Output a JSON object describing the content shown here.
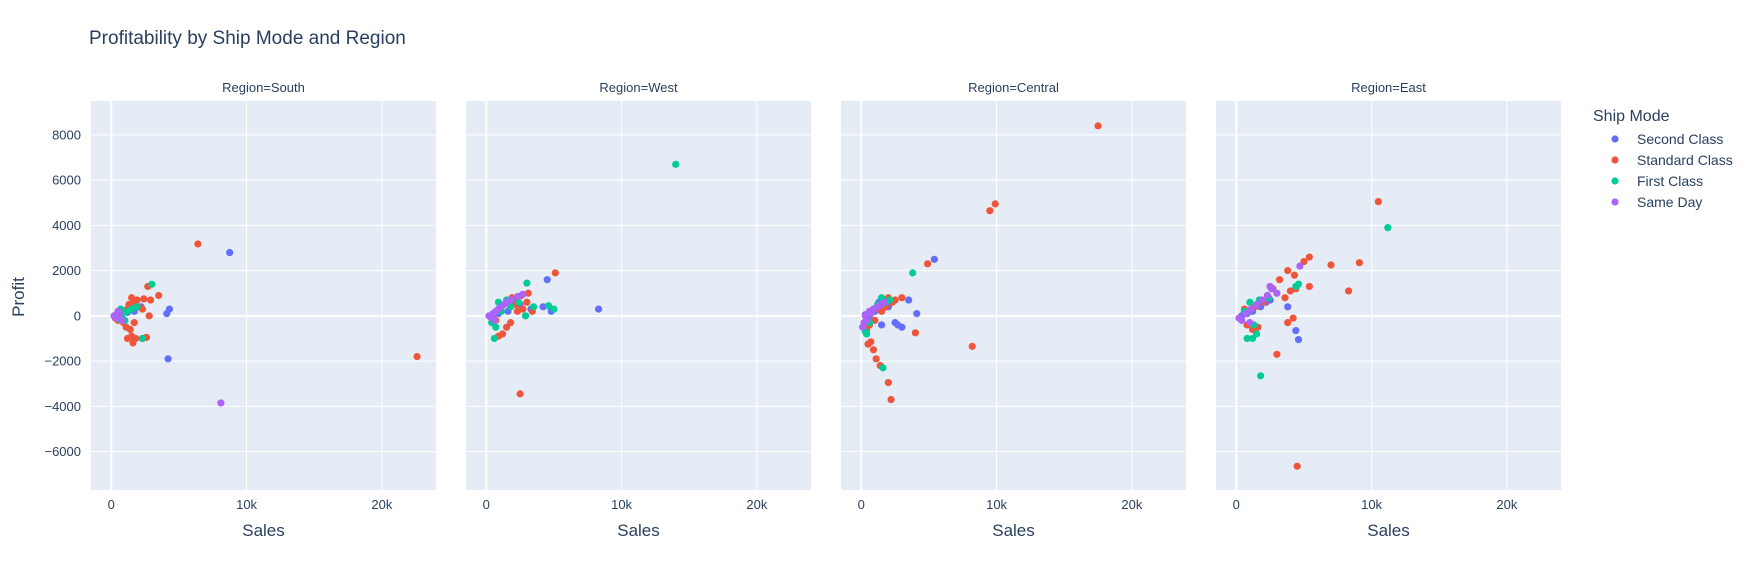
{
  "chart_data": {
    "type": "scatter",
    "title": "Profitability by Ship Mode and Region",
    "xlabel": "Sales",
    "ylabel": "Profit",
    "xlim": [
      -1500,
      24000
    ],
    "ylim": [
      -7700,
      9500
    ],
    "x_ticks": [
      0,
      10000,
      20000
    ],
    "x_tick_labels": [
      "0",
      "10k",
      "20k"
    ],
    "y_ticks": [
      -6000,
      -4000,
      -2000,
      0,
      2000,
      4000,
      6000,
      8000
    ],
    "y_tick_labels": [
      "−6000",
      "−4000",
      "−2000",
      "0",
      "2000",
      "4000",
      "6000",
      "8000"
    ],
    "grid": true,
    "legend": {
      "title": "Ship Mode",
      "position": "right",
      "entries": [
        "Second Class",
        "Standard Class",
        "First Class",
        "Same Day"
      ]
    },
    "colors": {
      "Second Class": "#636efa",
      "Standard Class": "#ef553b",
      "First Class": "#00cc96",
      "Same Day": "#ab63fa"
    },
    "panels": [
      {
        "title": "Region=South",
        "series": [
          {
            "name": "Second Class",
            "points": [
              [
                8750,
                2800
              ],
              [
                4300,
                300
              ],
              [
                4100,
                100
              ],
              [
                4200,
                -1900
              ],
              [
                1700,
                200
              ],
              [
                1200,
                150
              ],
              [
                2200,
                400
              ],
              [
                800,
                -100
              ],
              [
                300,
                20
              ],
              [
                600,
                80
              ]
            ]
          },
          {
            "name": "Standard Class",
            "points": [
              [
                22600,
                -1800
              ],
              [
                6400,
                3180
              ],
              [
                3500,
                900
              ],
              [
                2700,
                1300
              ],
              [
                2900,
                700
              ],
              [
                2400,
                750
              ],
              [
                2300,
                -1000
              ],
              [
                2600,
                -950
              ],
              [
                1800,
                -1000
              ],
              [
                1600,
                -1200
              ],
              [
                1500,
                -900
              ],
              [
                1200,
                -1000
              ],
              [
                1100,
                -500
              ],
              [
                1400,
                -600
              ],
              [
                1700,
                -300
              ],
              [
                1500,
                800
              ],
              [
                1900,
                700
              ],
              [
                1600,
                600
              ],
              [
                1300,
                500
              ],
              [
                2000,
                400
              ],
              [
                2800,
                0
              ],
              [
                2300,
                300
              ],
              [
                1000,
                200
              ],
              [
                700,
                100
              ],
              [
                500,
                -200
              ],
              [
                300,
                -100
              ],
              [
                900,
                -300
              ],
              [
                1200,
                300
              ]
            ]
          },
          {
            "name": "First Class",
            "points": [
              [
                3000,
                1400
              ],
              [
                2300,
                -1000
              ],
              [
                1900,
                400
              ],
              [
                1200,
                200
              ],
              [
                800,
                100
              ],
              [
                400,
                50
              ],
              [
                600,
                -150
              ],
              [
                1000,
                -200
              ],
              [
                1500,
                300
              ],
              [
                700,
                300
              ]
            ]
          },
          {
            "name": "Same Day",
            "points": [
              [
                8100,
                -3850
              ],
              [
                400,
                -100
              ],
              [
                200,
                0
              ],
              [
                600,
                100
              ],
              [
                300,
                -50
              ],
              [
                500,
                200
              ],
              [
                800,
                -200
              ]
            ]
          }
        ]
      },
      {
        "title": "Region=West",
        "series": [
          {
            "name": "Second Class",
            "points": [
              [
                8300,
                300
              ],
              [
                4500,
                1600
              ],
              [
                4800,
                200
              ],
              [
                4200,
                400
              ],
              [
                3300,
                300
              ],
              [
                2500,
                500
              ],
              [
                1600,
                200
              ],
              [
                900,
                100
              ],
              [
                500,
                50
              ],
              [
                2000,
                600
              ]
            ]
          },
          {
            "name": "Standard Class",
            "points": [
              [
                5100,
                1900
              ],
              [
                2500,
                -3450
              ],
              [
                3100,
                1000
              ],
              [
                3000,
                600
              ],
              [
                2600,
                900
              ],
              [
                2200,
                500
              ],
              [
                1800,
                -300
              ],
              [
                1500,
                -500
              ],
              [
                1200,
                -800
              ],
              [
                900,
                -900
              ],
              [
                1100,
                400
              ],
              [
                1500,
                600
              ],
              [
                2300,
                200
              ],
              [
                3400,
                200
              ],
              [
                700,
                -200
              ],
              [
                400,
                -100
              ],
              [
                1900,
                800
              ],
              [
                2700,
                300
              ]
            ]
          },
          {
            "name": "First Class",
            "points": [
              [
                14000,
                6700
              ],
              [
                3000,
                1450
              ],
              [
                4600,
                450
              ],
              [
                5000,
                300
              ],
              [
                3500,
                400
              ],
              [
                2900,
                0
              ],
              [
                2400,
                600
              ],
              [
                1800,
                400
              ],
              [
                1100,
                200
              ],
              [
                700,
                -500
              ],
              [
                600,
                -1000
              ],
              [
                400,
                -300
              ],
              [
                1500,
                700
              ],
              [
                900,
                600
              ]
            ]
          },
          {
            "name": "Same Day",
            "points": [
              [
                2700,
                950
              ],
              [
                2300,
                850
              ],
              [
                1800,
                700
              ],
              [
                1300,
                500
              ],
              [
                900,
                300
              ],
              [
                500,
                100
              ],
              [
                300,
                -50
              ],
              [
                700,
                200
              ],
              [
                1100,
                400
              ],
              [
                1500,
                600
              ],
              [
                600,
                -200
              ],
              [
                200,
                0
              ]
            ]
          }
        ]
      },
      {
        "title": "Region=Central",
        "series": [
          {
            "name": "Second Class",
            "points": [
              [
                5400,
                2500
              ],
              [
                4100,
                100
              ],
              [
                3500,
                700
              ],
              [
                3000,
                -500
              ],
              [
                2500,
                -300
              ],
              [
                2700,
                -400
              ],
              [
                2000,
                400
              ],
              [
                1500,
                -400
              ],
              [
                1000,
                200
              ],
              [
                600,
                -100
              ],
              [
                300,
                50
              ],
              [
                1300,
                600
              ]
            ]
          },
          {
            "name": "Standard Class",
            "points": [
              [
                17500,
                8400
              ],
              [
                9900,
                4950
              ],
              [
                9500,
                4650
              ],
              [
                4900,
                2300
              ],
              [
                8200,
                -1350
              ],
              [
                4000,
                -750
              ],
              [
                2200,
                -3700
              ],
              [
                2000,
                -2950
              ],
              [
                1400,
                -2200
              ],
              [
                1100,
                -1900
              ],
              [
                900,
                -1500
              ],
              [
                700,
                -1150
              ],
              [
                500,
                -1250
              ],
              [
                2500,
                700
              ],
              [
                3000,
                800
              ],
              [
                2300,
                600
              ],
              [
                1800,
                400
              ],
              [
                1500,
                200
              ],
              [
                1000,
                -200
              ],
              [
                600,
                -400
              ],
              [
                400,
                -600
              ],
              [
                2000,
                800
              ]
            ]
          },
          {
            "name": "First Class",
            "points": [
              [
                3800,
                1900
              ],
              [
                1600,
                -2300
              ],
              [
                1500,
                800
              ],
              [
                1200,
                500
              ],
              [
                900,
                300
              ],
              [
                600,
                -300
              ],
              [
                300,
                -700
              ],
              [
                400,
                -800
              ],
              [
                2100,
                700
              ],
              [
                1800,
                600
              ]
            ]
          },
          {
            "name": "Same Day",
            "points": [
              [
                1500,
                500
              ],
              [
                1200,
                400
              ],
              [
                900,
                300
              ],
              [
                600,
                200
              ],
              [
                300,
                0
              ],
              [
                200,
                -300
              ],
              [
                100,
                -500
              ],
              [
                400,
                -200
              ],
              [
                700,
                100
              ],
              [
                1000,
                300
              ],
              [
                1300,
                450
              ],
              [
                1700,
                600
              ]
            ]
          }
        ]
      },
      {
        "title": "Region=East",
        "series": [
          {
            "name": "Second Class",
            "points": [
              [
                4600,
                -1050
              ],
              [
                4400,
                -650
              ],
              [
                3800,
                400
              ],
              [
                2200,
                600
              ],
              [
                1800,
                400
              ],
              [
                1200,
                200
              ],
              [
                800,
                100
              ],
              [
                400,
                0
              ],
              [
                1500,
                500
              ],
              [
                2500,
                700
              ]
            ]
          },
          {
            "name": "Standard Class",
            "points": [
              [
                10500,
                5050
              ],
              [
                9100,
                2350
              ],
              [
                8300,
                1100
              ],
              [
                7000,
                2250
              ],
              [
                5400,
                2600
              ],
              [
                5000,
                2400
              ],
              [
                4500,
                -6650
              ],
              [
                4400,
                1200
              ],
              [
                4000,
                1100
              ],
              [
                3600,
                800
              ],
              [
                3200,
                1600
              ],
              [
                3000,
                -1700
              ],
              [
                2700,
                1200
              ],
              [
                2500,
                1300
              ],
              [
                4200,
                -100
              ],
              [
                3800,
                -300
              ],
              [
                2000,
                600
              ],
              [
                1600,
                -500
              ],
              [
                1200,
                -600
              ],
              [
                800,
                -400
              ],
              [
                600,
                300
              ],
              [
                1400,
                400
              ],
              [
                2300,
                900
              ],
              [
                5400,
                1300
              ],
              [
                3800,
                2000
              ],
              [
                4300,
                1800
              ]
            ]
          },
          {
            "name": "First Class",
            "points": [
              [
                11200,
                3900
              ],
              [
                1800,
                -2650
              ],
              [
                4600,
                1400
              ],
              [
                4400,
                1300
              ],
              [
                1500,
                -800
              ],
              [
                1200,
                -1000
              ],
              [
                800,
                -1000
              ],
              [
                1000,
                600
              ],
              [
                1700,
                700
              ],
              [
                2400,
                800
              ],
              [
                600,
                200
              ],
              [
                1300,
                -400
              ]
            ]
          },
          {
            "name": "Same Day",
            "points": [
              [
                4700,
                2200
              ],
              [
                2600,
                1200
              ],
              [
                2300,
                900
              ],
              [
                1900,
                700
              ],
              [
                1500,
                500
              ],
              [
                1100,
                300
              ],
              [
                700,
                100
              ],
              [
                400,
                -200
              ],
              [
                200,
                -100
              ],
              [
                1000,
                -300
              ],
              [
                3000,
                1000
              ],
              [
                2500,
                1300
              ]
            ]
          }
        ]
      }
    ]
  }
}
